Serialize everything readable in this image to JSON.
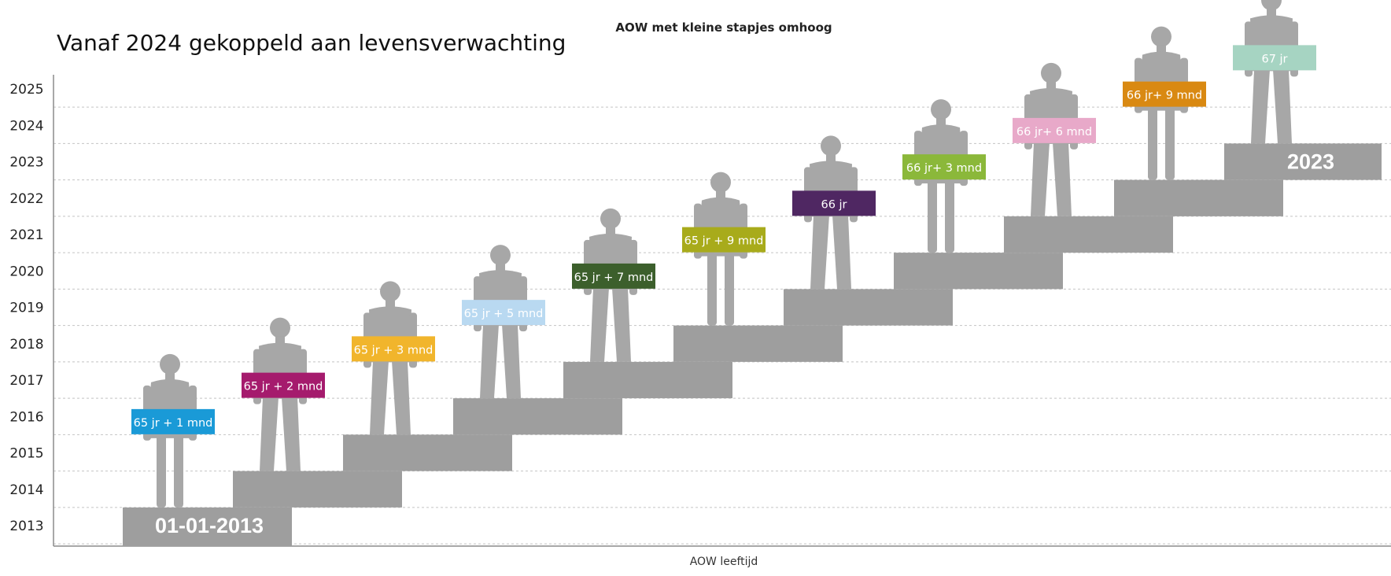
{
  "page": {
    "subtitle": "Vanaf 2024 gekoppeld aan levensverwachting"
  },
  "chart_data": {
    "type": "bar",
    "title": "AOW met kleine stapjes omhoog",
    "xlabel": "AOW leeftijd",
    "ylabel": "",
    "y_ticks": [
      "2013",
      "2014",
      "2015",
      "2016",
      "2017",
      "2018",
      "2019",
      "2020",
      "2021",
      "2022",
      "2023",
      "2024",
      "2025"
    ],
    "ylim": [
      2013,
      2025
    ],
    "grid": true,
    "steps": [
      {
        "year": 2013,
        "label": "65 jr + 1 mnd",
        "label_color": "#1a9ad7",
        "text_color": "#ffffff",
        "figure": "woman"
      },
      {
        "year": 2014,
        "label": "65 jr + 2 mnd",
        "label_color": "#a51b6d",
        "text_color": "#ffffff",
        "figure": "man"
      },
      {
        "year": 2015,
        "label": "65 jr + 3 mnd",
        "label_color": "#f1b52c",
        "text_color": "#ffffff",
        "figure": "man"
      },
      {
        "year": 2016,
        "label": "65 jr + 5 mnd",
        "label_color": "#b9d9f1",
        "text_color": "#ffffff",
        "figure": "man"
      },
      {
        "year": 2017,
        "label": "65 jr + 7 mnd",
        "label_color": "#3c5f2c",
        "text_color": "#ffffff",
        "figure": "man"
      },
      {
        "year": 2018,
        "label": "65 jr + 9 mnd",
        "label_color": "#a8ab1b",
        "text_color": "#ffffff",
        "figure": "woman"
      },
      {
        "year": 2019,
        "label": "66 jr",
        "label_color": "#4f2762",
        "text_color": "#ffffff",
        "figure": "man"
      },
      {
        "year": 2020,
        "label": "66 jr+ 3 mnd",
        "label_color": "#8bb83a",
        "text_color": "#ffffff",
        "figure": "woman"
      },
      {
        "year": 2021,
        "label": "66 jr+ 6 mnd",
        "label_color": "#e8a9c9",
        "text_color": "#ffffff",
        "figure": "man"
      },
      {
        "year": 2022,
        "label": "66 jr+ 9 mnd",
        "label_color": "#d98912",
        "text_color": "#ffffff",
        "figure": "woman"
      },
      {
        "year": 2023,
        "label": "67 jr",
        "label_color": "#a6d4c2",
        "text_color": "#ffffff",
        "figure": "man"
      }
    ],
    "annotations": [
      {
        "text": "01-01-2013",
        "at_year": 2013
      },
      {
        "text": "2023",
        "at_year": 2023
      }
    ],
    "colors": {
      "stairs": "#9e9e9e",
      "figures": "#a7a7a7",
      "grid": "#c4c4c4",
      "axis": "#8c8c8c",
      "annotation_text": "#ffffff"
    }
  }
}
